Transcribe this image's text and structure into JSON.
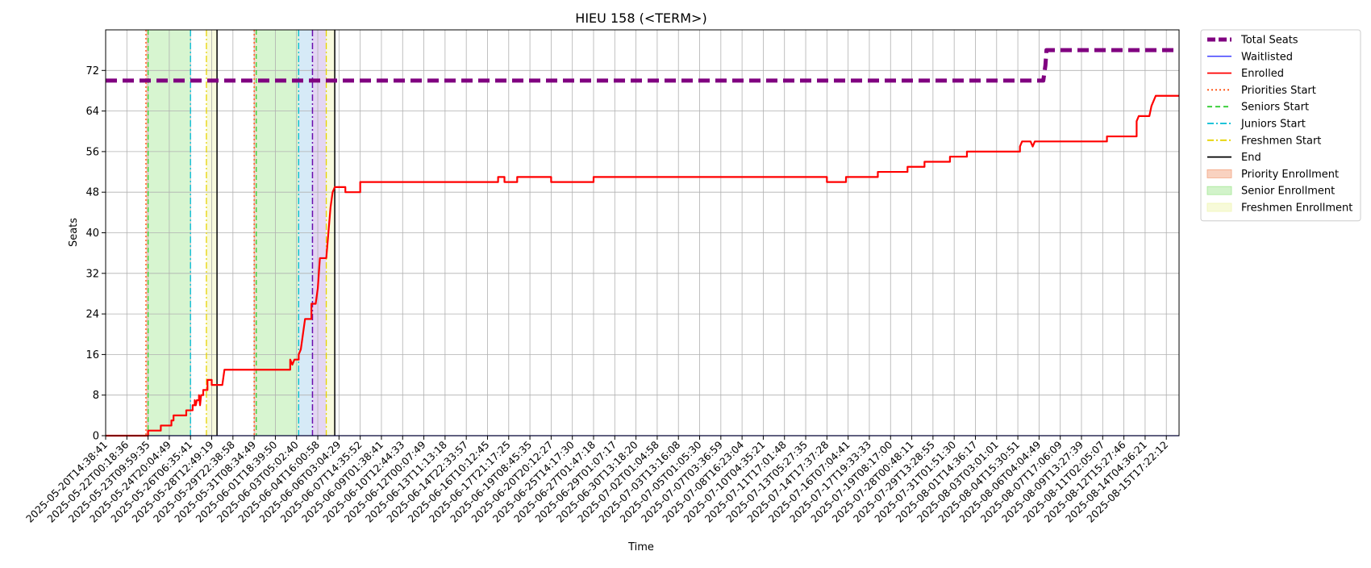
{
  "chart_data": {
    "type": "line",
    "title": "HIEU 158 (<TERM>)",
    "xlabel": "Time",
    "ylabel": "Seats",
    "ylim": [
      0,
      80
    ],
    "yticks": [
      0,
      8,
      16,
      24,
      32,
      40,
      48,
      56,
      64,
      72
    ],
    "grid": true,
    "legend_position": "outside-right",
    "x_ticks": [
      "2025-05-20T14:38:41",
      "2025-05-22T00:18:36",
      "2025-05-23T09:59:35",
      "2025-05-24T20:04:49",
      "2025-05-26T06:35:41",
      "2025-05-28T12:49:19",
      "2025-05-29T22:38:58",
      "2025-05-31T08:34:49",
      "2025-06-01T18:39:50",
      "2025-06-03T05:02:40",
      "2025-06-04T16:00:58",
      "2025-06-06T03:04:29",
      "2025-06-07T14:35:52",
      "2025-06-09T01:38:41",
      "2025-06-10T12:44:33",
      "2025-06-12T00:07:49",
      "2025-06-13T11:13:18",
      "2025-06-14T22:33:57",
      "2025-06-16T10:12:45",
      "2025-06-17T21:17:25",
      "2025-06-19T08:45:35",
      "2025-06-20T20:12:27",
      "2025-06-25T14:17:30",
      "2025-06-27T01:47:18",
      "2025-06-29T01:07:17",
      "2025-06-30T13:18:20",
      "2025-07-02T01:04:58",
      "2025-07-03T13:16:08",
      "2025-07-05T01:05:30",
      "2025-07-07T03:36:59",
      "2025-07-08T16:23:04",
      "2025-07-10T04:35:21",
      "2025-07-11T17:01:48",
      "2025-07-13T05:27:35",
      "2025-07-14T17:37:28",
      "2025-07-16T07:04:41",
      "2025-07-17T19:33:33",
      "2025-07-19T08:17:00",
      "2025-07-28T00:48:11",
      "2025-07-29T13:28:55",
      "2025-07-31T01:51:30",
      "2025-08-01T14:36:17",
      "2025-08-03T03:01:01",
      "2025-08-04T15:30:51",
      "2025-08-06T04:04:49",
      "2025-08-07T17:06:09",
      "2025-08-09T13:27:39",
      "2025-08-11T02:05:07",
      "2025-08-12T15:27:46",
      "2025-08-14T04:36:21",
      "2025-08-15T17:22:12"
    ],
    "x_range_tick_index": [
      0,
      50.6
    ],
    "series": [
      {
        "name": "Total Seats",
        "color": "#800080",
        "style": "dashed-thick",
        "points": [
          [
            0,
            70
          ],
          [
            44.2,
            70
          ],
          [
            44.3,
            73
          ],
          [
            44.35,
            76
          ],
          [
            50.6,
            76
          ]
        ]
      },
      {
        "name": "Waitlisted",
        "color": "#0000ff",
        "style": "solid-thin",
        "points": [
          [
            0,
            0
          ],
          [
            50.6,
            0
          ]
        ]
      },
      {
        "name": "Enrolled",
        "color": "#ff0000",
        "style": "solid",
        "points": [
          [
            0,
            0
          ],
          [
            2.0,
            0
          ],
          [
            2.0,
            1
          ],
          [
            2.6,
            1
          ],
          [
            2.6,
            2
          ],
          [
            3.1,
            2
          ],
          [
            3.1,
            3
          ],
          [
            3.2,
            3
          ],
          [
            3.2,
            4
          ],
          [
            3.8,
            4
          ],
          [
            3.8,
            5
          ],
          [
            4.1,
            5
          ],
          [
            4.1,
            6
          ],
          [
            4.2,
            6
          ],
          [
            4.2,
            7
          ],
          [
            4.25,
            6
          ],
          [
            4.3,
            7
          ],
          [
            4.4,
            7
          ],
          [
            4.4,
            8
          ],
          [
            4.45,
            6
          ],
          [
            4.5,
            8
          ],
          [
            4.6,
            8
          ],
          [
            4.6,
            9
          ],
          [
            4.8,
            9
          ],
          [
            4.8,
            11
          ],
          [
            5.0,
            11
          ],
          [
            5.0,
            10
          ],
          [
            5.2,
            10
          ],
          [
            5.2,
            10
          ],
          [
            5.5,
            10
          ],
          [
            5.6,
            13
          ],
          [
            8.7,
            13
          ],
          [
            8.7,
            15
          ],
          [
            8.8,
            14
          ],
          [
            8.9,
            15
          ],
          [
            9.1,
            15
          ],
          [
            9.1,
            16
          ],
          [
            9.2,
            17
          ],
          [
            9.3,
            20
          ],
          [
            9.4,
            23
          ],
          [
            9.7,
            23
          ],
          [
            9.7,
            26
          ],
          [
            9.9,
            26
          ],
          [
            10.0,
            29
          ],
          [
            10.1,
            35
          ],
          [
            10.4,
            35
          ],
          [
            10.5,
            40
          ],
          [
            10.6,
            45
          ],
          [
            10.7,
            48
          ],
          [
            10.8,
            49
          ],
          [
            11.3,
            49
          ],
          [
            11.3,
            48
          ],
          [
            12.0,
            48
          ],
          [
            12.0,
            50
          ],
          [
            18.5,
            50
          ],
          [
            18.5,
            51
          ],
          [
            18.8,
            51
          ],
          [
            18.8,
            50
          ],
          [
            19.4,
            50
          ],
          [
            19.4,
            51
          ],
          [
            21.0,
            51
          ],
          [
            21.0,
            50
          ],
          [
            23.0,
            50
          ],
          [
            23.0,
            51
          ],
          [
            34.0,
            51
          ],
          [
            34.0,
            50
          ],
          [
            34.9,
            50
          ],
          [
            34.9,
            51
          ],
          [
            36.4,
            51
          ],
          [
            36.4,
            52
          ],
          [
            37.8,
            52
          ],
          [
            37.8,
            53
          ],
          [
            38.6,
            53
          ],
          [
            38.6,
            54
          ],
          [
            39.8,
            54
          ],
          [
            39.8,
            55
          ],
          [
            40.6,
            55
          ],
          [
            40.6,
            56
          ],
          [
            43.1,
            56
          ],
          [
            43.1,
            57
          ],
          [
            43.2,
            58
          ],
          [
            43.6,
            58
          ],
          [
            43.7,
            57
          ],
          [
            43.8,
            58
          ],
          [
            47.2,
            58
          ],
          [
            47.2,
            59
          ],
          [
            48.6,
            59
          ],
          [
            48.6,
            62
          ],
          [
            48.7,
            63
          ],
          [
            49.2,
            63
          ],
          [
            49.3,
            65
          ],
          [
            49.4,
            66
          ],
          [
            49.5,
            67
          ],
          [
            50.6,
            67
          ]
        ]
      }
    ],
    "vertical_markers": [
      {
        "name": "Priorities Start",
        "color": "#ff4500",
        "style": "dotted",
        "x": [
          1.9,
          7.0
        ]
      },
      {
        "name": "Seniors Start",
        "color": "#32cd32",
        "style": "dashed",
        "x": [
          2.0,
          7.1
        ]
      },
      {
        "name": "Juniors Start",
        "color": "#00bcd4",
        "style": "dashdot",
        "x": [
          4.0,
          9.1
        ]
      },
      {
        "name": "Freshmen Start",
        "color": "#e6d300",
        "style": "dashdot",
        "x": [
          4.75,
          10.4
        ]
      },
      {
        "name": "End",
        "color": "#000000",
        "style": "solid",
        "x": [
          5.25,
          10.8
        ]
      }
    ],
    "extra_markers": [
      {
        "color": "#6a0dad",
        "style": "dashdot",
        "x": 9.75
      }
    ],
    "spans": [
      {
        "name": "Priority Enrollment",
        "color": "#f4a582",
        "ranges": [
          [
            1.9,
            2.0
          ],
          [
            7.0,
            7.1
          ]
        ]
      },
      {
        "name": "Senior Enrollment",
        "color": "#a6e896",
        "ranges": [
          [
            2.0,
            4.0
          ],
          [
            7.1,
            9.1
          ]
        ]
      },
      {
        "name": "Freshmen Enrollment",
        "color": "#f0f5b4",
        "ranges": [
          [
            4.75,
            5.25
          ],
          [
            10.4,
            10.8
          ]
        ]
      }
    ],
    "extra_spans": [
      {
        "color": "#b4d8f0",
        "range": [
          9.1,
          9.75
        ]
      },
      {
        "color": "#cdb4ea",
        "range": [
          9.75,
          10.4
        ]
      }
    ],
    "legend": [
      {
        "label": "Total Seats",
        "kind": "line",
        "color": "#800080",
        "style": "dashed-thick"
      },
      {
        "label": "Waitlisted",
        "kind": "line",
        "color": "#0000ff",
        "style": "solid-thin"
      },
      {
        "label": "Enrolled",
        "kind": "line",
        "color": "#ff0000",
        "style": "solid"
      },
      {
        "label": "Priorities Start",
        "kind": "line",
        "color": "#ff4500",
        "style": "dotted"
      },
      {
        "label": "Seniors Start",
        "kind": "line",
        "color": "#32cd32",
        "style": "dashed"
      },
      {
        "label": "Juniors Start",
        "kind": "line",
        "color": "#00bcd4",
        "style": "dashdot"
      },
      {
        "label": "Freshmen Start",
        "kind": "line",
        "color": "#e6d300",
        "style": "dashdot"
      },
      {
        "label": "End",
        "kind": "line",
        "color": "#000000",
        "style": "solid"
      },
      {
        "label": "Priority Enrollment",
        "kind": "patch",
        "color": "#f4a582"
      },
      {
        "label": "Senior Enrollment",
        "kind": "patch",
        "color": "#a6e896"
      },
      {
        "label": "Freshmen Enrollment",
        "kind": "patch",
        "color": "#f0f5b4"
      }
    ]
  }
}
